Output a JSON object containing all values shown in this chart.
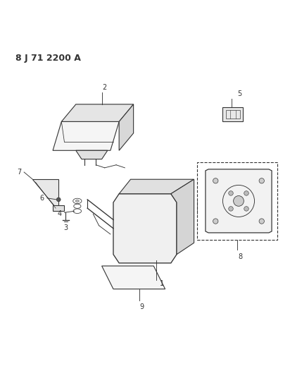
{
  "title_code": "8 J 71 2200 A",
  "bg_color": "#ffffff",
  "line_color": "#333333",
  "fig_width": 4.12,
  "fig_height": 5.33,
  "dpi": 100
}
